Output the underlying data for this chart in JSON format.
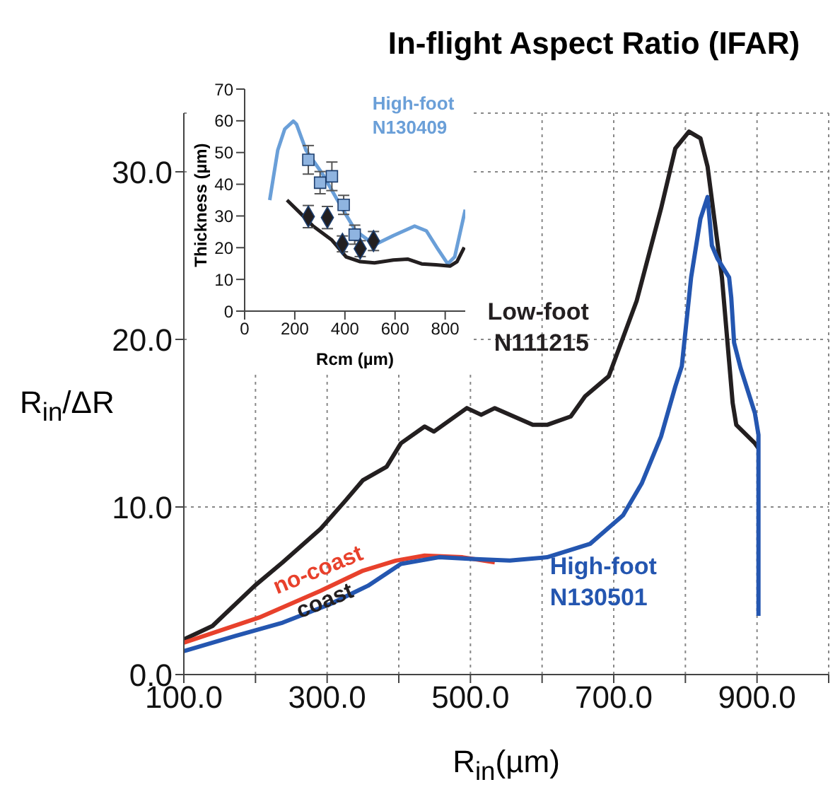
{
  "chart_data": [
    {
      "type": "line",
      "title": "In-flight Aspect Ratio (IFAR)",
      "xlabel": "R$_{in}$(µm)",
      "ylabel": "R$_{in}$/ΔR",
      "xlim": [
        100,
        1000
      ],
      "xticks": [
        {
          "value": 100,
          "label": "100.0"
        },
        {
          "value": 200,
          "label": null
        },
        {
          "value": 300,
          "label": "300.0"
        },
        {
          "value": 400,
          "label": null
        },
        {
          "value": 500,
          "label": "500.0"
        },
        {
          "value": 600,
          "label": null
        },
        {
          "value": 700,
          "label": "700.0"
        },
        {
          "value": 800,
          "label": null
        },
        {
          "value": 900,
          "label": "900.0"
        },
        {
          "value": 1000,
          "label": null
        }
      ],
      "ylim": [
        0,
        33.5
      ],
      "yticks": [
        {
          "value": 0,
          "label": "0.0"
        },
        {
          "value": 10,
          "label": "10.0"
        },
        {
          "value": 20,
          "label": "20.0"
        },
        {
          "value": 30,
          "label": "30.0"
        }
      ],
      "grid": true,
      "annotations": [
        "coast"
      ],
      "series": [
        {
          "name": "Low-foot N111215",
          "color": "#231f20",
          "x": [
            100,
            140,
            199,
            238,
            291,
            324,
            350,
            383,
            403,
            436,
            449,
            495,
            515,
            534,
            587,
            607,
            640,
            660,
            693,
            732,
            766,
            786,
            805,
            821,
            831,
            851,
            861,
            866,
            871,
            897,
            902
          ],
          "values": [
            2.1,
            2.9,
            5.3,
            6.7,
            8.7,
            10.3,
            11.6,
            12.4,
            13.8,
            14.8,
            14.5,
            15.9,
            15.5,
            15.9,
            14.9,
            14.9,
            15.4,
            16.6,
            17.8,
            22.3,
            27.8,
            31.4,
            32.4,
            32.0,
            30.3,
            23.7,
            18.7,
            16.2,
            14.9,
            13.8,
            13.5
          ]
        },
        {
          "name": "no-coast",
          "color": "#e8412c",
          "x": [
            100,
            205,
            291,
            350,
            396,
            436,
            489,
            534
          ],
          "values": [
            1.9,
            3.4,
            5.0,
            6.2,
            6.8,
            7.1,
            7.0,
            6.7
          ]
        },
        {
          "name": "High-foot N130501",
          "color": "#2456b0",
          "x": [
            100,
            172,
            238,
            304,
            357,
            403,
            456,
            502,
            555,
            607,
            667,
            713,
            739,
            766,
            786,
            795,
            808,
            821,
            831,
            837,
            845,
            861,
            864,
            868,
            877,
            897,
            902,
            902
          ],
          "values": [
            1.4,
            2.3,
            3.1,
            4.2,
            5.3,
            6.6,
            7.0,
            6.9,
            6.8,
            7.0,
            7.8,
            9.5,
            11.4,
            14.2,
            17.2,
            18.4,
            23.7,
            27.2,
            28.5,
            25.6,
            24.8,
            23.7,
            22.5,
            19.8,
            18.3,
            15.6,
            14.3,
            3.5
          ]
        }
      ]
    },
    {
      "type": "line",
      "xlabel": "Rcm (µm)",
      "ylabel": "Thickness (µm)",
      "xlim": [
        0,
        880
      ],
      "xticks": [
        0,
        200,
        400,
        600,
        800
      ],
      "ylim": [
        0,
        70
      ],
      "yticks": [
        0,
        10,
        20,
        30,
        40,
        50,
        60,
        70
      ],
      "series": [
        {
          "name": "High-foot N130409",
          "color": "#6a9fd8",
          "x": [
            100,
            132,
            160,
            194,
            207,
            245,
            311,
            386,
            443,
            518,
            593,
            678,
            725,
            772,
            810,
            838,
            880
          ],
          "values": [
            35,
            50.7,
            57.4,
            59.9,
            58.9,
            50.7,
            43.2,
            32.8,
            25.3,
            20.9,
            23.8,
            26.8,
            25.3,
            19.4,
            14.9,
            17.1,
            32
          ]
        },
        {
          "color": "#231f20",
          "x": [
            169,
            217,
            273,
            348,
            405,
            461,
            518,
            593,
            650,
            706,
            763,
            819,
            847,
            876
          ],
          "values": [
            35,
            31.3,
            26.8,
            22.4,
            17.1,
            15.6,
            15.2,
            16.1,
            16.4,
            14.9,
            14.6,
            14.2,
            15.6,
            20.1
          ]
        },
        {
          "type": "scatter",
          "color": "#8fb4e0",
          "marker": "square",
          "x": [
            254,
            301,
            348,
            395,
            439
          ],
          "values": [
            47.7,
            40.5,
            42.5,
            33.5,
            24.1
          ],
          "errors": [
            4.5,
            3.5,
            4.5,
            3,
            3
          ]
        },
        {
          "type": "scatter",
          "color": "#231f20",
          "marker": "diamond",
          "x": [
            254,
            330,
            390,
            461,
            514
          ],
          "values": [
            29.8,
            29.5,
            21.2,
            19.7,
            22.1
          ],
          "errors": [
            3.5,
            3.5,
            2.5,
            2.5,
            3
          ]
        }
      ]
    }
  ]
}
